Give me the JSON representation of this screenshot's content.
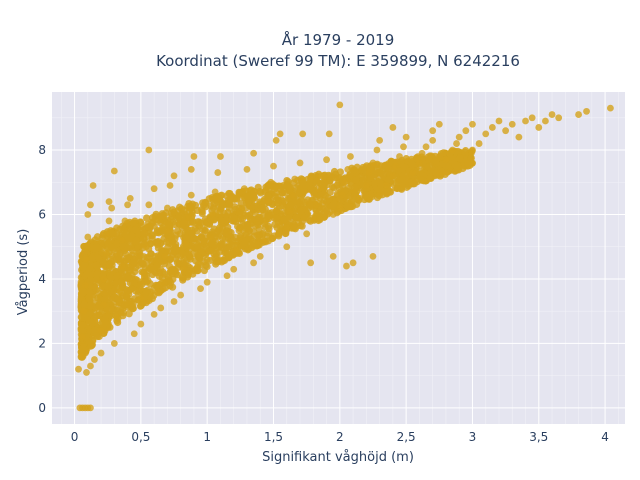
{
  "chart_data": {
    "type": "scatter",
    "title_line1": "År 1979 - 2019",
    "title_line2": "Koordinat (Sweref 99 TM): E 359899, N 6242216",
    "xlabel": "Signifikant våghöjd (m)",
    "ylabel": "Vågperiod (s)",
    "xlim": [
      -0.17,
      4.15
    ],
    "ylim": [
      -0.5,
      9.8
    ],
    "x_ticks": [
      {
        "value": 0,
        "label": "0"
      },
      {
        "value": 0.5,
        "label": "0,5"
      },
      {
        "value": 1,
        "label": "1"
      },
      {
        "value": 1.5,
        "label": "1,5"
      },
      {
        "value": 2,
        "label": "2"
      },
      {
        "value": 2.5,
        "label": "2,5"
      },
      {
        "value": 3,
        "label": "3"
      },
      {
        "value": 3.5,
        "label": "3,5"
      },
      {
        "value": 4,
        "label": "4"
      }
    ],
    "y_ticks": [
      {
        "value": 0,
        "label": "0"
      },
      {
        "value": 2,
        "label": "2"
      },
      {
        "value": 4,
        "label": "4"
      },
      {
        "value": 6,
        "label": "6"
      },
      {
        "value": 8,
        "label": "8"
      }
    ],
    "marker_color": "#d4a21c",
    "background_color": "#e5e5f0",
    "grid": true,
    "series": [
      {
        "name": "",
        "points": [
          [
            0.04,
            0
          ],
          [
            0.06,
            0
          ],
          [
            0.08,
            0
          ],
          [
            0.1,
            0
          ],
          [
            0.12,
            0
          ],
          [
            0.03,
            1.2
          ],
          [
            0.05,
            1.6
          ],
          [
            0.06,
            2.2
          ],
          [
            0.07,
            3.0
          ],
          [
            0.08,
            3.8
          ],
          [
            0.09,
            4.6
          ],
          [
            0.1,
            5.3
          ],
          [
            0.1,
            6.0
          ],
          [
            0.12,
            6.3
          ],
          [
            0.14,
            6.9
          ],
          [
            0.09,
            1.1
          ],
          [
            0.12,
            1.3
          ],
          [
            0.15,
            1.5
          ],
          [
            0.2,
            1.7
          ],
          [
            0.2,
            2.4
          ],
          [
            0.22,
            3.2
          ],
          [
            0.22,
            4.0
          ],
          [
            0.24,
            4.8
          ],
          [
            0.24,
            5.4
          ],
          [
            0.26,
            5.8
          ],
          [
            0.28,
            6.2
          ],
          [
            0.3,
            7.35
          ],
          [
            0.26,
            6.4
          ],
          [
            0.3,
            2.0
          ],
          [
            0.32,
            2.8
          ],
          [
            0.34,
            3.6
          ],
          [
            0.36,
            4.4
          ],
          [
            0.36,
            5.2
          ],
          [
            0.38,
            5.8
          ],
          [
            0.4,
            6.3
          ],
          [
            0.42,
            6.5
          ],
          [
            0.45,
            2.3
          ],
          [
            0.5,
            2.6
          ],
          [
            0.5,
            3.4
          ],
          [
            0.52,
            4.2
          ],
          [
            0.54,
            5.0
          ],
          [
            0.55,
            5.7
          ],
          [
            0.56,
            6.3
          ],
          [
            0.56,
            8.0
          ],
          [
            0.6,
            6.8
          ],
          [
            0.6,
            2.9
          ],
          [
            0.65,
            3.1
          ],
          [
            0.66,
            3.9
          ],
          [
            0.68,
            4.7
          ],
          [
            0.7,
            5.5
          ],
          [
            0.7,
            6.2
          ],
          [
            0.72,
            6.9
          ],
          [
            0.75,
            7.2
          ],
          [
            0.75,
            3.3
          ],
          [
            0.8,
            3.5
          ],
          [
            0.82,
            4.3
          ],
          [
            0.84,
            5.1
          ],
          [
            0.86,
            5.9
          ],
          [
            0.88,
            6.6
          ],
          [
            0.88,
            7.4
          ],
          [
            0.9,
            7.8
          ],
          [
            0.95,
            3.7
          ],
          [
            1.0,
            3.9
          ],
          [
            1.0,
            4.6
          ],
          [
            1.02,
            5.3
          ],
          [
            1.04,
            6.0
          ],
          [
            1.06,
            6.7
          ],
          [
            1.08,
            7.3
          ],
          [
            1.1,
            7.8
          ],
          [
            1.15,
            4.1
          ],
          [
            1.2,
            4.3
          ],
          [
            1.22,
            4.9
          ],
          [
            1.24,
            5.5
          ],
          [
            1.26,
            6.2
          ],
          [
            1.28,
            6.8
          ],
          [
            1.3,
            7.4
          ],
          [
            1.35,
            7.9
          ],
          [
            1.35,
            4.5
          ],
          [
            1.4,
            4.7
          ],
          [
            1.42,
            5.2
          ],
          [
            1.44,
            5.8
          ],
          [
            1.46,
            6.4
          ],
          [
            1.48,
            7.0
          ],
          [
            1.5,
            7.5
          ],
          [
            1.52,
            8.3
          ],
          [
            1.55,
            8.5
          ],
          [
            1.6,
            5.0
          ],
          [
            1.6,
            5.6
          ],
          [
            1.62,
            6.1
          ],
          [
            1.64,
            6.6
          ],
          [
            1.66,
            7.1
          ],
          [
            1.7,
            7.6
          ],
          [
            1.72,
            8.5
          ],
          [
            1.75,
            5.4
          ],
          [
            1.78,
            4.5
          ],
          [
            1.8,
            5.9
          ],
          [
            1.82,
            6.3
          ],
          [
            1.84,
            6.8
          ],
          [
            1.86,
            7.2
          ],
          [
            1.9,
            7.7
          ],
          [
            1.92,
            8.5
          ],
          [
            1.95,
            6.0
          ],
          [
            1.95,
            4.7
          ],
          [
            2.0,
            6.2
          ],
          [
            2.02,
            6.6
          ],
          [
            2.04,
            7.0
          ],
          [
            2.06,
            7.4
          ],
          [
            2.08,
            7.8
          ],
          [
            2.0,
            9.4
          ],
          [
            2.05,
            4.4
          ],
          [
            2.1,
            4.5
          ],
          [
            2.15,
            6.5
          ],
          [
            2.2,
            6.9
          ],
          [
            2.22,
            7.3
          ],
          [
            2.25,
            7.6
          ],
          [
            2.28,
            8.0
          ],
          [
            2.3,
            8.3
          ],
          [
            2.25,
            4.7
          ],
          [
            2.35,
            6.9
          ],
          [
            2.4,
            7.2
          ],
          [
            2.42,
            7.5
          ],
          [
            2.45,
            7.8
          ],
          [
            2.48,
            8.1
          ],
          [
            2.5,
            8.4
          ],
          [
            2.4,
            8.7
          ],
          [
            2.55,
            7.3
          ],
          [
            2.6,
            7.6
          ],
          [
            2.62,
            7.9
          ],
          [
            2.65,
            8.1
          ],
          [
            2.7,
            8.3
          ],
          [
            2.7,
            8.6
          ],
          [
            2.75,
            8.8
          ],
          [
            2.8,
            7.7
          ],
          [
            2.85,
            8.0
          ],
          [
            2.88,
            8.2
          ],
          [
            2.9,
            8.4
          ],
          [
            2.95,
            8.6
          ],
          [
            3.0,
            8.0
          ],
          [
            3.0,
            8.8
          ],
          [
            3.05,
            8.2
          ],
          [
            3.1,
            8.5
          ],
          [
            3.15,
            8.7
          ],
          [
            3.2,
            8.9
          ],
          [
            3.25,
            8.6
          ],
          [
            3.3,
            8.8
          ],
          [
            3.35,
            8.4
          ],
          [
            3.4,
            8.9
          ],
          [
            3.45,
            9.0
          ],
          [
            3.5,
            8.7
          ],
          [
            3.55,
            8.9
          ],
          [
            3.6,
            9.1
          ],
          [
            3.65,
            9.0
          ],
          [
            3.8,
            9.1
          ],
          [
            3.86,
            9.2
          ],
          [
            4.04,
            9.3
          ]
        ]
      }
    ]
  }
}
